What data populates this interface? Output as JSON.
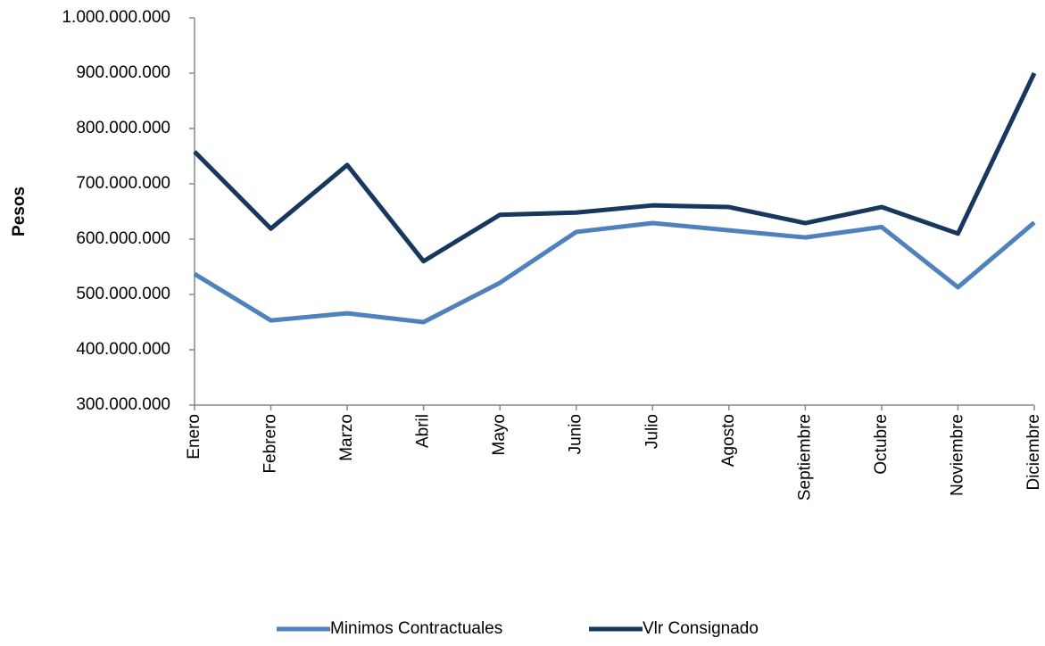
{
  "chart_data": {
    "type": "line",
    "y_label": "Pesos",
    "categories": [
      "Enero",
      "Febrero",
      "Marzo",
      "Abril",
      "Mayo",
      "Junio",
      "Julio",
      "Agosto",
      "Septiembre",
      "Octubre",
      "Noviembre",
      "Diciembre"
    ],
    "series": [
      {
        "name": "Minimos Contractuales",
        "color": "#4f81bd",
        "values": [
          537000000,
          453000000,
          466000000,
          450000000,
          521000000,
          613000000,
          629000000,
          616000000,
          603000000,
          622000000,
          513000000,
          630000000
        ]
      },
      {
        "name": "Vlr Consignado",
        "color": "#17375e",
        "values": [
          758000000,
          619000000,
          734000000,
          560000000,
          644000000,
          648000000,
          661000000,
          658000000,
          629000000,
          658000000,
          610000000,
          900000000
        ]
      }
    ],
    "ylim": [
      300000000,
      1000000000
    ],
    "yticks": [
      {
        "value": 300000000,
        "label": "300.000.000"
      },
      {
        "value": 400000000,
        "label": "400.000.000"
      },
      {
        "value": 500000000,
        "label": "500.000.000"
      },
      {
        "value": 600000000,
        "label": "600.000.000"
      },
      {
        "value": 700000000,
        "label": "700.000.000"
      },
      {
        "value": 800000000,
        "label": "800.000.000"
      },
      {
        "value": 900000000,
        "label": "900.000.000"
      },
      {
        "value": 1000000000,
        "label": "1.000.000.000"
      }
    ],
    "legend": "bottom"
  }
}
